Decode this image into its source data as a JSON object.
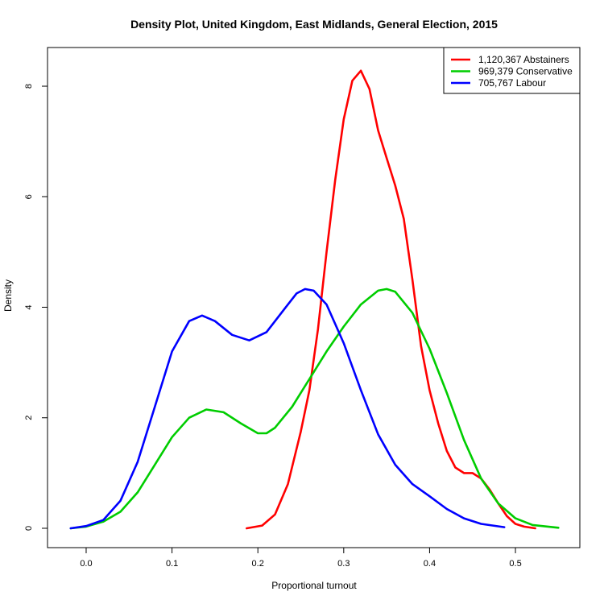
{
  "chart_data": {
    "type": "line",
    "title": "Density Plot, United Kingdom, East Midlands, General Election, 2015",
    "xlabel": "Proportional turnout",
    "ylabel": "Density",
    "xlim": [
      -0.045,
      0.575
    ],
    "ylim": [
      -0.35,
      8.7
    ],
    "x_ticks": [
      0.0,
      0.1,
      0.2,
      0.3,
      0.4,
      0.5
    ],
    "x_tick_labels": [
      "0.0",
      "0.1",
      "0.2",
      "0.3",
      "0.4",
      "0.5"
    ],
    "y_ticks": [
      0,
      2,
      4,
      6,
      8
    ],
    "y_tick_labels": [
      "0",
      "2",
      "4",
      "6",
      "8"
    ],
    "grid": false,
    "legend_position": "top-right",
    "series": [
      {
        "name": "1,120,367 Abstainers",
        "color": "#ff0000",
        "points": [
          [
            0.187,
            0.0
          ],
          [
            0.205,
            0.05
          ],
          [
            0.22,
            0.25
          ],
          [
            0.235,
            0.8
          ],
          [
            0.25,
            1.75
          ],
          [
            0.26,
            2.5
          ],
          [
            0.27,
            3.6
          ],
          [
            0.28,
            5.0
          ],
          [
            0.29,
            6.3
          ],
          [
            0.3,
            7.4
          ],
          [
            0.31,
            8.1
          ],
          [
            0.32,
            8.28
          ],
          [
            0.33,
            7.95
          ],
          [
            0.34,
            7.2
          ],
          [
            0.35,
            6.7
          ],
          [
            0.36,
            6.2
          ],
          [
            0.37,
            5.6
          ],
          [
            0.38,
            4.5
          ],
          [
            0.39,
            3.3
          ],
          [
            0.4,
            2.5
          ],
          [
            0.41,
            1.9
          ],
          [
            0.42,
            1.4
          ],
          [
            0.43,
            1.1
          ],
          [
            0.44,
            1.0
          ],
          [
            0.45,
            1.0
          ],
          [
            0.46,
            0.9
          ],
          [
            0.47,
            0.7
          ],
          [
            0.48,
            0.45
          ],
          [
            0.49,
            0.22
          ],
          [
            0.5,
            0.08
          ],
          [
            0.51,
            0.03
          ],
          [
            0.523,
            0.0
          ]
        ]
      },
      {
        "name": "969,379 Conservative",
        "color": "#00cd00",
        "points": [
          [
            -0.018,
            0.0
          ],
          [
            0.0,
            0.03
          ],
          [
            0.02,
            0.12
          ],
          [
            0.04,
            0.3
          ],
          [
            0.06,
            0.65
          ],
          [
            0.08,
            1.15
          ],
          [
            0.1,
            1.65
          ],
          [
            0.12,
            2.0
          ],
          [
            0.14,
            2.15
          ],
          [
            0.16,
            2.1
          ],
          [
            0.18,
            1.9
          ],
          [
            0.2,
            1.72
          ],
          [
            0.21,
            1.72
          ],
          [
            0.22,
            1.82
          ],
          [
            0.24,
            2.2
          ],
          [
            0.26,
            2.7
          ],
          [
            0.28,
            3.2
          ],
          [
            0.3,
            3.65
          ],
          [
            0.32,
            4.05
          ],
          [
            0.34,
            4.3
          ],
          [
            0.35,
            4.33
          ],
          [
            0.36,
            4.28
          ],
          [
            0.38,
            3.9
          ],
          [
            0.4,
            3.25
          ],
          [
            0.42,
            2.45
          ],
          [
            0.44,
            1.6
          ],
          [
            0.46,
            0.9
          ],
          [
            0.48,
            0.45
          ],
          [
            0.5,
            0.18
          ],
          [
            0.52,
            0.06
          ],
          [
            0.55,
            0.01
          ]
        ]
      },
      {
        "name": "705,767 Labour",
        "color": "#0000ff",
        "points": [
          [
            -0.018,
            0.0
          ],
          [
            0.0,
            0.04
          ],
          [
            0.02,
            0.15
          ],
          [
            0.04,
            0.5
          ],
          [
            0.06,
            1.2
          ],
          [
            0.08,
            2.2
          ],
          [
            0.1,
            3.2
          ],
          [
            0.12,
            3.75
          ],
          [
            0.135,
            3.85
          ],
          [
            0.15,
            3.75
          ],
          [
            0.17,
            3.5
          ],
          [
            0.19,
            3.4
          ],
          [
            0.21,
            3.55
          ],
          [
            0.23,
            3.95
          ],
          [
            0.245,
            4.25
          ],
          [
            0.255,
            4.33
          ],
          [
            0.265,
            4.3
          ],
          [
            0.28,
            4.05
          ],
          [
            0.3,
            3.35
          ],
          [
            0.32,
            2.5
          ],
          [
            0.34,
            1.7
          ],
          [
            0.36,
            1.15
          ],
          [
            0.38,
            0.8
          ],
          [
            0.4,
            0.58
          ],
          [
            0.42,
            0.35
          ],
          [
            0.44,
            0.18
          ],
          [
            0.46,
            0.08
          ],
          [
            0.487,
            0.02
          ]
        ]
      }
    ]
  }
}
